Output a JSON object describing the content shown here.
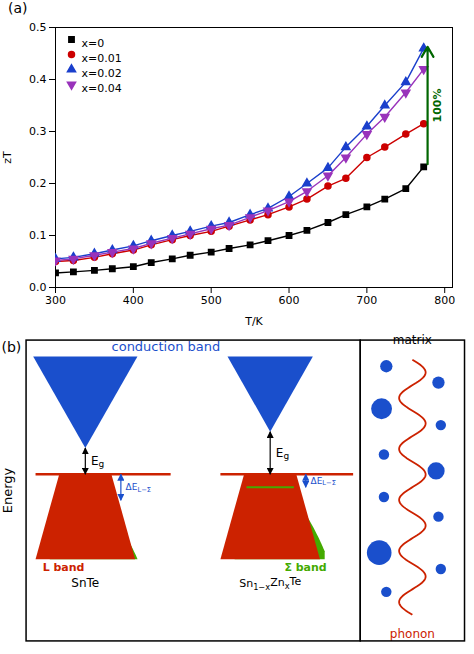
{
  "chart_data": [
    {
      "type": "line",
      "title": "(a)",
      "xlabel": "T/K",
      "ylabel": "zT",
      "xlim": [
        300,
        810
      ],
      "ylim": [
        0,
        0.5
      ],
      "xticks": [
        300,
        400,
        500,
        600,
        700,
        800
      ],
      "yticks": [
        {
          "value": 0.0,
          "label": "0.0"
        },
        0.1,
        0.2,
        0.3,
        0.4,
        0.5
      ],
      "legend": "upper left",
      "x": [
        300,
        323,
        350,
        373,
        400,
        423,
        450,
        473,
        500,
        523,
        550,
        573,
        600,
        623,
        650,
        673,
        700,
        723,
        750,
        773
      ],
      "series": [
        {
          "name": "x=0",
          "color": "#000000",
          "marker": "square",
          "values": [
            0.028,
            0.03,
            0.033,
            0.036,
            0.04,
            0.048,
            0.055,
            0.062,
            0.068,
            0.075,
            0.082,
            0.09,
            0.1,
            0.11,
            0.125,
            0.14,
            0.155,
            0.17,
            0.19,
            0.232
          ]
        },
        {
          "name": "x=0.01",
          "color": "#cc0000",
          "marker": "circle",
          "values": [
            0.05,
            0.052,
            0.058,
            0.065,
            0.072,
            0.082,
            0.092,
            0.1,
            0.108,
            0.118,
            0.13,
            0.14,
            0.155,
            0.17,
            0.195,
            0.21,
            0.25,
            0.27,
            0.295,
            0.315
          ]
        },
        {
          "name": "x=0.02",
          "color": "#1a3fcc",
          "marker": "triangle-up",
          "values": [
            0.055,
            0.058,
            0.065,
            0.072,
            0.08,
            0.09,
            0.1,
            0.108,
            0.118,
            0.125,
            0.14,
            0.152,
            0.175,
            0.2,
            0.23,
            0.27,
            0.31,
            0.35,
            0.395,
            0.46
          ]
        },
        {
          "name": "x=0.04",
          "color": "#9933bb",
          "marker": "triangle-down",
          "values": [
            0.052,
            0.055,
            0.062,
            0.068,
            0.075,
            0.085,
            0.095,
            0.103,
            0.113,
            0.12,
            0.135,
            0.148,
            0.165,
            0.185,
            0.215,
            0.25,
            0.295,
            0.328,
            0.375,
            0.42
          ]
        }
      ],
      "annotations": [
        {
          "text": "100%",
          "color": "#006600",
          "x": 778,
          "y1": 0.237,
          "y2": 0.463
        }
      ]
    },
    {
      "type": "diagram",
      "title": "(b)",
      "colors": {
        "blue": "#1a4fcc",
        "red": "#cc2200",
        "green": "#44aa00",
        "black": "#000000"
      },
      "labels": {
        "energy": "Energy",
        "conduction": "conduction band",
        "gap": [
          {
            "t": "E"
          },
          {
            "t": "g",
            "sub": true
          }
        ],
        "offset": [
          {
            "t": "ΔE"
          },
          {
            "t": "L−Σ",
            "sub": true
          }
        ],
        "l_band": "L band",
        "sigma_band": "Σ band",
        "left": "SnTe",
        "right": [
          {
            "t": "Sn"
          },
          {
            "t": "1−x",
            "sub": true
          },
          {
            "t": "Zn"
          },
          {
            "t": "x",
            "sub": true
          },
          {
            "t": "Te"
          }
        ],
        "matrix": "matrix",
        "phonon": "phonon"
      }
    }
  ]
}
